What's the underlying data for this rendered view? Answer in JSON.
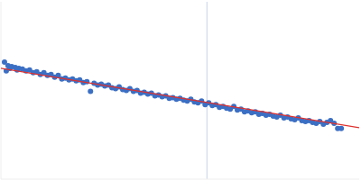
{
  "chart_data": {
    "type": "scatter",
    "xlim": [
      0,
      1
    ],
    "ylim": [
      0,
      1
    ],
    "tick_labels": false,
    "grid": false,
    "reference_line_x": 0.575,
    "reference_line_color": "#c8d4e6",
    "series": [
      {
        "type": "scatter",
        "color": "#3b6fc4",
        "marker": "circle",
        "x": [
          0.01,
          0.015,
          0.02,
          0.025,
          0.03,
          0.04,
          0.045,
          0.05,
          0.06,
          0.07,
          0.08,
          0.09,
          0.1,
          0.11,
          0.12,
          0.13,
          0.14,
          0.15,
          0.16,
          0.17,
          0.18,
          0.19,
          0.2,
          0.21,
          0.22,
          0.23,
          0.24,
          0.25,
          0.26,
          0.27,
          0.28,
          0.29,
          0.3,
          0.31,
          0.32,
          0.33,
          0.34,
          0.35,
          0.36,
          0.37,
          0.38,
          0.39,
          0.4,
          0.41,
          0.42,
          0.43,
          0.44,
          0.45,
          0.46,
          0.47,
          0.48,
          0.49,
          0.5,
          0.51,
          0.52,
          0.53,
          0.54,
          0.55,
          0.56,
          0.57,
          0.58,
          0.59,
          0.6,
          0.61,
          0.62,
          0.63,
          0.64,
          0.65,
          0.66,
          0.67,
          0.68,
          0.69,
          0.7,
          0.71,
          0.72,
          0.73,
          0.74,
          0.75,
          0.76,
          0.77,
          0.78,
          0.79,
          0.8,
          0.81,
          0.82,
          0.83,
          0.84,
          0.85,
          0.86,
          0.87,
          0.88,
          0.89,
          0.9,
          0.91,
          0.92,
          0.93,
          0.94,
          0.95
        ],
        "values": [
          0.66,
          0.61,
          0.64,
          0.625,
          0.635,
          0.63,
          0.615,
          0.625,
          0.62,
          0.61,
          0.615,
          0.6,
          0.605,
          0.59,
          0.6,
          0.585,
          0.59,
          0.575,
          0.585,
          0.565,
          0.57,
          0.56,
          0.565,
          0.555,
          0.56,
          0.545,
          0.55,
          0.495,
          0.54,
          0.53,
          0.535,
          0.525,
          0.53,
          0.515,
          0.51,
          0.52,
          0.505,
          0.5,
          0.51,
          0.495,
          0.5,
          0.485,
          0.49,
          0.48,
          0.485,
          0.47,
          0.475,
          0.465,
          0.47,
          0.455,
          0.46,
          0.45,
          0.455,
          0.445,
          0.44,
          0.45,
          0.435,
          0.43,
          0.44,
          0.42,
          0.43,
          0.415,
          0.42,
          0.405,
          0.41,
          0.4,
          0.395,
          0.41,
          0.39,
          0.395,
          0.38,
          0.385,
          0.375,
          0.38,
          0.365,
          0.37,
          0.36,
          0.365,
          0.355,
          0.35,
          0.36,
          0.345,
          0.35,
          0.34,
          0.335,
          0.345,
          0.33,
          0.325,
          0.33,
          0.32,
          0.315,
          0.325,
          0.31,
          0.32,
          0.33,
          0.315,
          0.285,
          0.285
        ]
      },
      {
        "type": "line",
        "color": "#e0302c",
        "x": [
          0,
          1
        ],
        "values": [
          0.625,
          0.29
        ]
      }
    ]
  }
}
